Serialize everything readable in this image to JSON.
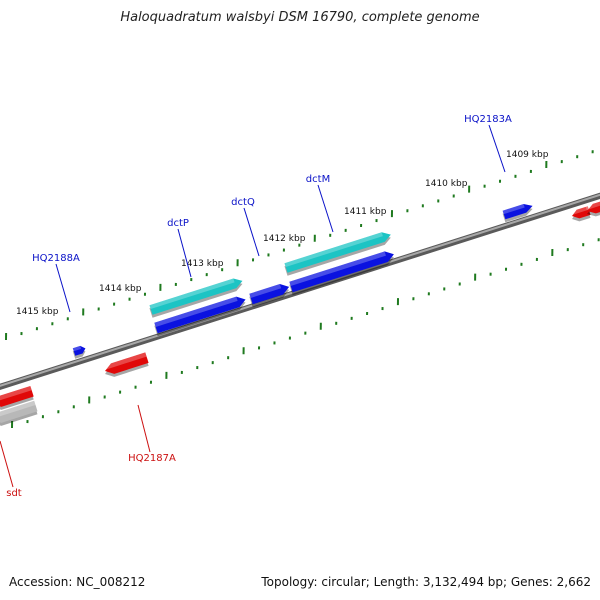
{
  "title": "Haloquadratum walsbyi DSM 16790, complete genome",
  "colors": {
    "background": "#ffffff",
    "backbone": "#7a7a7a",
    "tick": "#1f7a1f",
    "forward_gene": "#0a12e0",
    "reverse_gene": "#e00808",
    "cds_cyan": "#1cc4c4",
    "pseudo_grey": "#b8b8b8",
    "label_forward": "#0a12c8",
    "label_reverse": "#cc1010"
  },
  "scale_labels": [
    "1409 kbp",
    "1410 kbp",
    "1411 kbp",
    "1412 kbp",
    "1413 kbp",
    "1414 kbp",
    "1415 kbp"
  ],
  "gene_labels": {
    "forward": [
      "HQ2183A",
      "dctM",
      "dctQ",
      "dctP",
      "HQ2188A"
    ],
    "reverse": [
      "HQ2187A",
      "sdt"
    ]
  },
  "footer": {
    "accession": "Accession: NC_008212",
    "summary": "Topology: circular; Length: 3,132,494 bp; Genes: 2,662"
  }
}
